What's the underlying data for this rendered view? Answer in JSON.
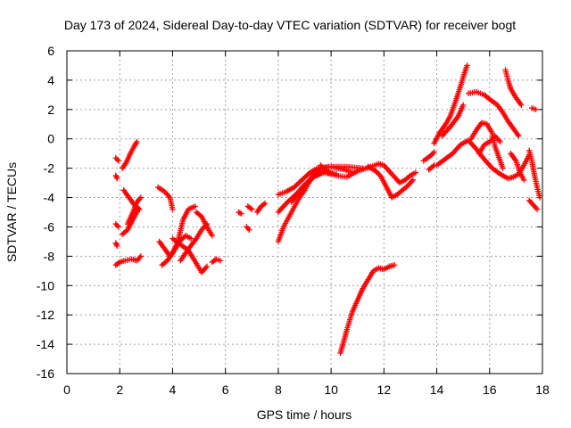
{
  "chart_data": {
    "type": "scatter",
    "title": "Day 173 of 2024, Sidereal Day-to-day VTEC variation (SDTVAR) for receiver bogt",
    "xlabel": "GPS time / hours",
    "ylabel": "SDTVAR / TECUs",
    "xlim": [
      0,
      18
    ],
    "ylim": [
      -16,
      6
    ],
    "xticks": [
      0,
      2,
      4,
      6,
      8,
      10,
      12,
      14,
      16,
      18
    ],
    "yticks": [
      -16,
      -14,
      -12,
      -10,
      -8,
      -6,
      -4,
      -2,
      0,
      2,
      4,
      6
    ],
    "grid": true,
    "marker": "+",
    "color": "#ff0000",
    "series": [
      {
        "points": [
          [
            1.85,
            -1.3
          ],
          [
            1.95,
            -1.5
          ]
        ]
      },
      {
        "points": [
          [
            1.85,
            -2.5
          ],
          [
            1.9,
            -2.7
          ]
        ]
      },
      {
        "points": [
          [
            2.1,
            -2.0
          ],
          [
            2.25,
            -1.6
          ],
          [
            2.4,
            -1.0
          ],
          [
            2.55,
            -0.5
          ],
          [
            2.65,
            -0.2
          ]
        ]
      },
      {
        "points": [
          [
            1.85,
            -5.8
          ],
          [
            1.95,
            -6.0
          ]
        ]
      },
      {
        "points": [
          [
            1.85,
            -7.1
          ],
          [
            1.9,
            -7.3
          ]
        ]
      },
      {
        "points": [
          [
            1.85,
            -8.6
          ],
          [
            2.0,
            -8.4
          ],
          [
            2.2,
            -8.3
          ],
          [
            2.45,
            -8.2
          ],
          [
            2.65,
            -8.3
          ],
          [
            2.8,
            -8.0
          ]
        ]
      },
      {
        "points": [
          [
            2.1,
            -6.5
          ],
          [
            2.3,
            -6.2
          ],
          [
            2.5,
            -5.5
          ],
          [
            2.7,
            -4.8
          ]
        ]
      },
      {
        "points": [
          [
            2.15,
            -3.5
          ],
          [
            2.35,
            -4.0
          ],
          [
            2.55,
            -4.5
          ],
          [
            2.75,
            -4.8
          ]
        ]
      },
      {
        "points": [
          [
            2.3,
            -5.8
          ],
          [
            2.5,
            -5.0
          ],
          [
            2.65,
            -4.3
          ],
          [
            2.8,
            -4.0
          ]
        ]
      },
      {
        "points": [
          [
            3.45,
            -3.3
          ],
          [
            3.7,
            -3.6
          ],
          [
            3.9,
            -4.0
          ],
          [
            4.0,
            -4.8
          ]
        ]
      },
      {
        "points": [
          [
            3.5,
            -7.0
          ],
          [
            3.7,
            -7.5
          ],
          [
            3.9,
            -8.0
          ],
          [
            4.1,
            -7.5
          ],
          [
            4.3,
            -6.9
          ],
          [
            4.5,
            -6.6
          ],
          [
            4.7,
            -6.8
          ]
        ]
      },
      {
        "points": [
          [
            3.6,
            -8.6
          ],
          [
            3.8,
            -8.3
          ],
          [
            4.0,
            -7.8
          ],
          [
            4.2,
            -7.0
          ],
          [
            4.4,
            -5.5
          ],
          [
            4.6,
            -4.8
          ],
          [
            4.85,
            -4.6
          ]
        ]
      },
      {
        "points": [
          [
            4.0,
            -6.8
          ],
          [
            4.3,
            -7.2
          ],
          [
            4.6,
            -7.6
          ],
          [
            4.9,
            -8.5
          ],
          [
            5.1,
            -9.1
          ],
          [
            5.3,
            -8.7
          ]
        ]
      },
      {
        "points": [
          [
            4.3,
            -8.3
          ],
          [
            4.6,
            -7.5
          ],
          [
            4.9,
            -6.8
          ],
          [
            5.1,
            -6.2
          ],
          [
            5.3,
            -5.8
          ]
        ]
      },
      {
        "points": [
          [
            4.9,
            -5.0
          ],
          [
            5.1,
            -5.3
          ],
          [
            5.3,
            -6.0
          ],
          [
            5.5,
            -6.6
          ]
        ]
      },
      {
        "points": [
          [
            5.5,
            -8.4
          ],
          [
            5.65,
            -8.2
          ],
          [
            5.8,
            -8.3
          ]
        ]
      },
      {
        "points": [
          [
            6.5,
            -5.0
          ],
          [
            6.6,
            -5.1
          ]
        ]
      },
      {
        "points": [
          [
            6.85,
            -4.6
          ],
          [
            7.0,
            -4.8
          ]
        ]
      },
      {
        "points": [
          [
            6.8,
            -6.0
          ],
          [
            6.9,
            -6.2
          ]
        ]
      },
      {
        "points": [
          [
            7.2,
            -5.0
          ],
          [
            7.35,
            -4.6
          ],
          [
            7.5,
            -4.4
          ]
        ]
      },
      {
        "points": [
          [
            8.0,
            -7.0
          ],
          [
            8.2,
            -6.0
          ],
          [
            8.5,
            -5.0
          ],
          [
            8.8,
            -4.0
          ],
          [
            9.0,
            -3.5
          ],
          [
            9.3,
            -2.5
          ],
          [
            9.6,
            -2.0
          ],
          [
            10.0,
            -1.9
          ],
          [
            10.5,
            -2.1
          ],
          [
            10.8,
            -2.3
          ]
        ]
      },
      {
        "points": [
          [
            8.0,
            -5.0
          ],
          [
            8.3,
            -4.4
          ],
          [
            8.6,
            -3.9
          ],
          [
            9.0,
            -3.2
          ],
          [
            9.4,
            -2.5
          ],
          [
            9.8,
            -2.2
          ],
          [
            10.2,
            -2.5
          ],
          [
            10.6,
            -2.6
          ],
          [
            11.0,
            -2.2
          ],
          [
            11.5,
            -1.9
          ],
          [
            11.8,
            -1.7
          ]
        ]
      },
      {
        "points": [
          [
            8.0,
            -3.8
          ],
          [
            8.3,
            -3.6
          ],
          [
            8.6,
            -3.3
          ],
          [
            8.9,
            -2.8
          ],
          [
            9.2,
            -2.3
          ],
          [
            9.5,
            -2.0
          ],
          [
            9.9,
            -1.9
          ]
        ]
      },
      {
        "points": [
          [
            8.5,
            -4.3
          ],
          [
            8.9,
            -3.3
          ],
          [
            9.3,
            -2.6
          ],
          [
            9.7,
            -2.3
          ],
          [
            10.0,
            -2.4
          ]
        ]
      },
      {
        "points": [
          [
            9.6,
            -1.8
          ],
          [
            9.9,
            -2.3
          ],
          [
            10.2,
            -2.4
          ]
        ]
      },
      {
        "points": [
          [
            10.0,
            -1.9
          ],
          [
            10.6,
            -1.9
          ],
          [
            11.2,
            -2.0
          ]
        ]
      },
      {
        "points": [
          [
            11.4,
            -1.9
          ],
          [
            11.7,
            -2.2
          ],
          [
            11.9,
            -2.6
          ],
          [
            12.1,
            -3.3
          ],
          [
            12.3,
            -4.0
          ],
          [
            12.5,
            -3.8
          ],
          [
            12.7,
            -3.5
          ],
          [
            12.9,
            -3.2
          ],
          [
            13.1,
            -2.8
          ]
        ]
      },
      {
        "points": [
          [
            11.8,
            -1.7
          ],
          [
            12.0,
            -1.8
          ],
          [
            12.2,
            -2.2
          ],
          [
            12.4,
            -2.6
          ],
          [
            12.6,
            -3.0
          ],
          [
            12.8,
            -2.8
          ],
          [
            13.0,
            -2.5
          ],
          [
            13.2,
            -2.3
          ]
        ]
      },
      {
        "points": [
          [
            10.35,
            -14.6
          ],
          [
            10.45,
            -14.0
          ],
          [
            10.6,
            -13.0
          ],
          [
            10.8,
            -11.8
          ],
          [
            11.0,
            -11.0
          ],
          [
            11.2,
            -10.2
          ],
          [
            11.4,
            -9.6
          ],
          [
            11.6,
            -9.0
          ],
          [
            11.8,
            -8.8
          ],
          [
            12.0,
            -8.9
          ],
          [
            12.2,
            -8.7
          ],
          [
            12.4,
            -8.6
          ]
        ]
      },
      {
        "points": [
          [
            13.5,
            -1.5
          ],
          [
            13.8,
            -1.1
          ],
          [
            13.9,
            -0.9
          ]
        ]
      },
      {
        "points": [
          [
            13.7,
            -2.1
          ],
          [
            13.9,
            -1.8
          ]
        ]
      },
      {
        "points": [
          [
            14.0,
            -1.8
          ],
          [
            14.3,
            -1.4
          ],
          [
            14.6,
            -1.0
          ],
          [
            14.9,
            -0.4
          ],
          [
            15.2,
            -0.1
          ],
          [
            15.5,
            -0.7
          ],
          [
            15.8,
            -1.4
          ],
          [
            16.1,
            -2.0
          ],
          [
            16.4,
            -2.4
          ],
          [
            16.7,
            -2.7
          ],
          [
            16.9,
            -2.6
          ],
          [
            17.1,
            -2.4
          ],
          [
            17.3,
            -1.8
          ],
          [
            17.5,
            -1.1
          ]
        ]
      },
      {
        "points": [
          [
            13.9,
            -0.3
          ],
          [
            14.1,
            0.4
          ],
          [
            14.3,
            0.9
          ],
          [
            14.5,
            1.5
          ],
          [
            14.7,
            2.5
          ],
          [
            14.9,
            3.6
          ],
          [
            15.05,
            4.5
          ],
          [
            15.15,
            5.0
          ]
        ]
      },
      {
        "points": [
          [
            14.2,
            0.2
          ],
          [
            14.5,
            0.8
          ],
          [
            14.8,
            1.5
          ],
          [
            15.0,
            2.3
          ]
        ]
      },
      {
        "points": [
          [
            15.2,
            3.1
          ],
          [
            15.5,
            3.2
          ],
          [
            15.8,
            3.0
          ],
          [
            16.0,
            2.7
          ],
          [
            16.3,
            2.3
          ],
          [
            16.5,
            1.8
          ],
          [
            16.7,
            1.2
          ],
          [
            16.9,
            0.7
          ],
          [
            17.1,
            0.2
          ]
        ]
      },
      {
        "points": [
          [
            15.3,
            0.0
          ],
          [
            15.5,
            0.6
          ],
          [
            15.7,
            1.1
          ],
          [
            15.9,
            1.0
          ],
          [
            16.1,
            0.4
          ],
          [
            16.2,
            -0.5
          ],
          [
            16.4,
            -1.5
          ],
          [
            16.5,
            -2.0
          ]
        ]
      },
      {
        "points": [
          [
            15.6,
            -1.0
          ],
          [
            15.8,
            -0.4
          ],
          [
            16.0,
            -0.2
          ],
          [
            16.2,
            0.2
          ],
          [
            16.4,
            -0.2
          ]
        ]
      },
      {
        "points": [
          [
            16.6,
            4.7
          ],
          [
            16.7,
            4.0
          ],
          [
            16.8,
            3.4
          ],
          [
            17.0,
            2.8
          ],
          [
            17.2,
            2.3
          ]
        ]
      },
      {
        "points": [
          [
            16.8,
            -1.0
          ],
          [
            17.0,
            -1.5
          ],
          [
            17.15,
            -2.3
          ],
          [
            17.3,
            -2.8
          ]
        ]
      },
      {
        "points": [
          [
            17.6,
            2.1
          ],
          [
            17.75,
            2.0
          ]
        ]
      },
      {
        "points": [
          [
            17.5,
            -0.8
          ],
          [
            17.6,
            -1.5
          ],
          [
            17.7,
            -2.5
          ],
          [
            17.8,
            -3.3
          ],
          [
            17.9,
            -4.0
          ]
        ]
      },
      {
        "points": [
          [
            17.5,
            -4.2
          ],
          [
            17.7,
            -4.6
          ],
          [
            17.8,
            -4.8
          ]
        ]
      }
    ]
  }
}
